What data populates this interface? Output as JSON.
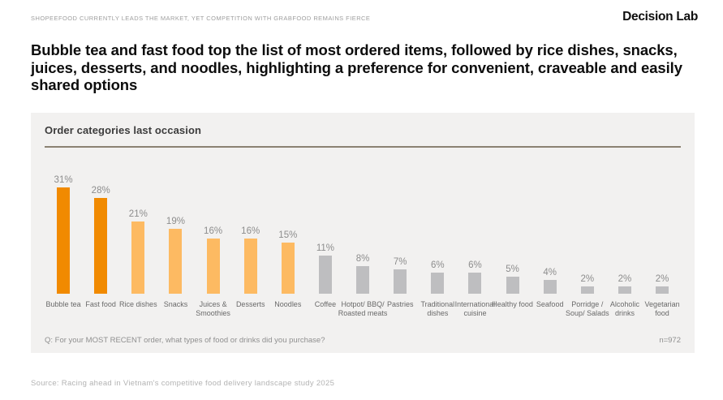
{
  "header": {
    "kicker": "SHOPEEFOOD CURRENTLY LEADS THE MARKET, YET COMPETITION WITH GRABFOOD REMAINS FIERCE",
    "logo": "Decision Lab"
  },
  "title": "Bubble tea and fast food top the list of most ordered items, followed by rice dishes, snacks, juices, desserts, and noodles, highlighting a preference for convenient, craveable and easily shared options",
  "chart_data": {
    "type": "bar",
    "title": "Order categories last occasion",
    "unit": "%",
    "categories": [
      "Bubble tea",
      "Fast food",
      "Rice dishes",
      "Snacks",
      "Juices & Smoothies",
      "Desserts",
      "Noodles",
      "Coffee",
      "Hotpot/ BBQ/ Roasted meats",
      "Pastries",
      "Traditional dishes",
      "International cuisine",
      "Healthy food",
      "Seafood",
      "Porridge / Soup/ Salads",
      "Alcoholic drinks",
      "Vegetarian food"
    ],
    "values": [
      31,
      28,
      21,
      19,
      16,
      16,
      15,
      11,
      8,
      7,
      6,
      6,
      5,
      4,
      2,
      2,
      2
    ],
    "bar_colors": [
      "#F18A00",
      "#F18A00",
      "#FDBA62",
      "#FDBA62",
      "#FDBA62",
      "#FDBA62",
      "#FDBA62",
      "#BEBEC0",
      "#BEBEC0",
      "#BEBEC0",
      "#BEBEC0",
      "#BEBEC0",
      "#BEBEC0",
      "#BEBEC0",
      "#BEBEC0",
      "#BEBEC0",
      "#BEBEC0"
    ],
    "ylim": [
      0,
      35
    ],
    "grid": false,
    "legend": "none",
    "value_labels": true,
    "footnote": "Q: For your MOST RECENT order, what types of food or drinks did you purchase?",
    "sample_size": "n=972"
  },
  "footer": {
    "source": "Source: Racing ahead in Vietnam's competitive food delivery landscape study 2025"
  },
  "colors": {
    "accent_dark_orange": "#F18A00",
    "accent_light_orange": "#FDBA62",
    "bar_gray": "#BEBEC0",
    "card_background": "#F2F1F0",
    "divider": "#8B8272"
  }
}
